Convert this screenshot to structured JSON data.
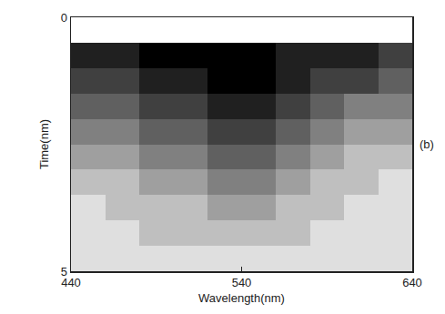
{
  "chart_data": {
    "type": "heatmap",
    "x_label": "Wavelength(nm)",
    "y_label": "Time(nm)",
    "annotations": [
      "(b)"
    ],
    "color": "#000000",
    "grid": false,
    "x": [
      450,
      470,
      490,
      510,
      530,
      550,
      570,
      590,
      610,
      630
    ],
    "y": [
      0.25,
      0.75,
      1.25,
      1.75,
      2.25,
      2.75,
      3.25,
      3.75,
      4.25,
      4.75
    ],
    "z": [
      [
        1,
        1,
        1,
        1,
        1,
        1,
        1,
        1,
        1,
        1
      ],
      [
        8,
        8,
        9,
        9,
        9,
        9,
        8,
        8,
        8,
        7
      ],
      [
        7,
        7,
        8,
        8,
        9,
        9,
        8,
        7,
        7,
        6
      ],
      [
        6,
        6,
        7,
        7,
        8,
        8,
        7,
        6,
        5,
        5
      ],
      [
        5,
        5,
        6,
        6,
        7,
        7,
        6,
        5,
        4,
        4
      ],
      [
        4,
        4,
        5,
        5,
        6,
        6,
        5,
        4,
        3,
        3
      ],
      [
        3,
        3,
        4,
        4,
        5,
        5,
        4,
        3,
        3,
        2
      ],
      [
        2,
        3,
        3,
        3,
        4,
        4,
        3,
        3,
        2,
        2
      ],
      [
        2,
        2,
        3,
        3,
        3,
        3,
        3,
        2,
        2,
        2
      ],
      [
        2,
        2,
        2,
        2,
        2,
        2,
        2,
        2,
        2,
        2
      ]
    ],
    "xlim": [
      440,
      640
    ],
    "xticks": [
      440,
      540,
      640
    ],
    "ylim": [
      5,
      0
    ],
    "yticks": [
      0,
      5
    ]
  }
}
